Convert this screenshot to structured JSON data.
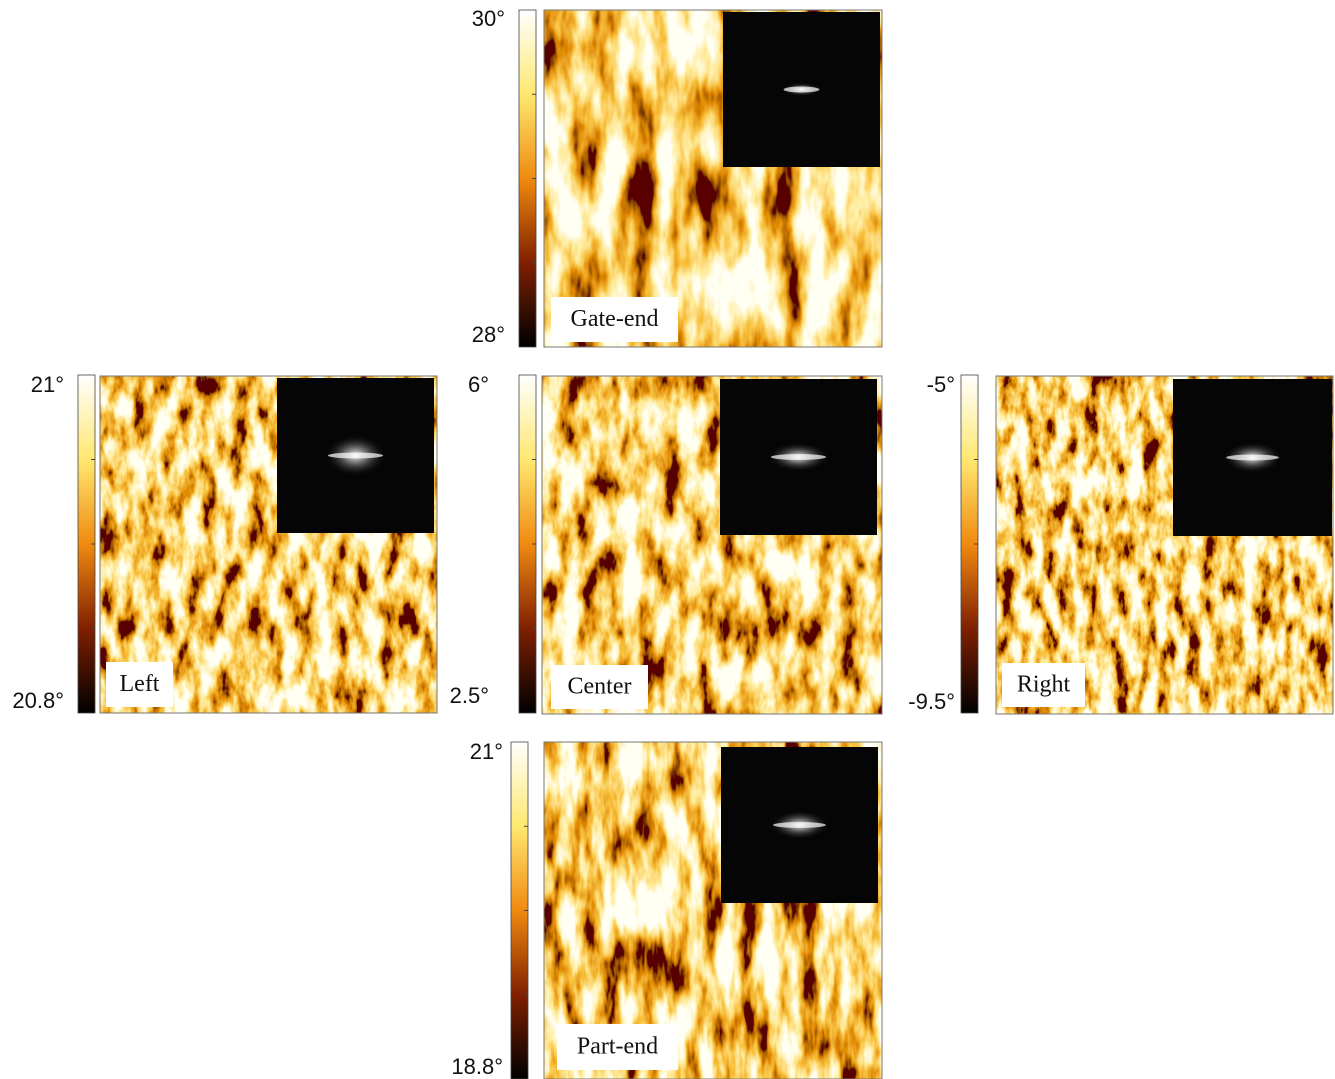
{
  "panels": [
    {
      "label": "Gate-end",
      "colorbar_max": "30°",
      "colorbar_min": "28°"
    },
    {
      "label": "Left",
      "colorbar_max": "21°",
      "colorbar_min": "20.8°"
    },
    {
      "label": "Center",
      "colorbar_max": "6°",
      "colorbar_min": "2.5°"
    },
    {
      "label": "Right",
      "colorbar_max": "-5°",
      "colorbar_min": "-9.5°"
    },
    {
      "label": "Part-end",
      "colorbar_max": "21°",
      "colorbar_min": "18.8°"
    }
  ]
}
